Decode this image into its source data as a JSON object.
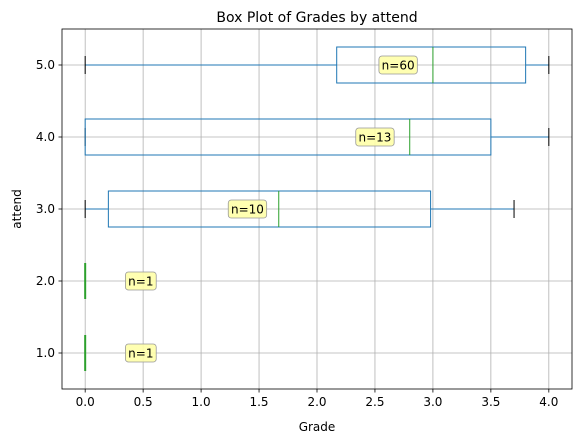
{
  "chart_data": {
    "type": "boxplot",
    "orientation": "horizontal",
    "title": "Box Plot of Grades by attend",
    "xlabel": "Grade",
    "ylabel": "attend",
    "xlim": [
      -0.2,
      4.2
    ],
    "ylim": [
      0.5,
      5.5
    ],
    "xticks": [
      0.0,
      0.5,
      1.0,
      1.5,
      2.0,
      2.5,
      3.0,
      3.5,
      4.0
    ],
    "xtick_labels": [
      "0.0",
      "0.5",
      "1.0",
      "1.5",
      "2.0",
      "2.5",
      "3.0",
      "3.5",
      "4.0"
    ],
    "grid": true,
    "colors": {
      "box": "#1f77b4",
      "median": "#2ca02c",
      "cap": "#000000",
      "grid": "#b0b0b0",
      "annotation_fill": "#ffffa8",
      "annotation_edge": "#999999"
    },
    "groups": [
      {
        "label": "5.0",
        "y": 5.0,
        "whisker_low": 0.0,
        "q1": 2.17,
        "median": 3.0,
        "q3": 3.8,
        "whisker_high": 4.0,
        "annotation": "n=60",
        "ann_x": 2.7
      },
      {
        "label": "4.0",
        "y": 4.0,
        "whisker_low": 0.0,
        "q1": 0.0,
        "median": 2.8,
        "q3": 3.5,
        "whisker_high": 4.0,
        "annotation": "n=13",
        "ann_x": 2.5
      },
      {
        "label": "3.0",
        "y": 3.0,
        "whisker_low": 0.0,
        "q1": 0.2,
        "median": 1.67,
        "q3": 2.98,
        "whisker_high": 3.7,
        "annotation": "n=10",
        "ann_x": 1.4
      },
      {
        "label": "2.0",
        "y": 2.0,
        "whisker_low": 0.0,
        "q1": 0.0,
        "median": 0.0,
        "q3": 0.0,
        "whisker_high": 0.0,
        "annotation": "n=1",
        "ann_x": 0.48
      },
      {
        "label": "1.0",
        "y": 1.0,
        "whisker_low": 0.0,
        "q1": 0.0,
        "median": 0.0,
        "q3": 0.0,
        "whisker_high": 0.0,
        "annotation": "n=1",
        "ann_x": 0.48
      }
    ]
  }
}
